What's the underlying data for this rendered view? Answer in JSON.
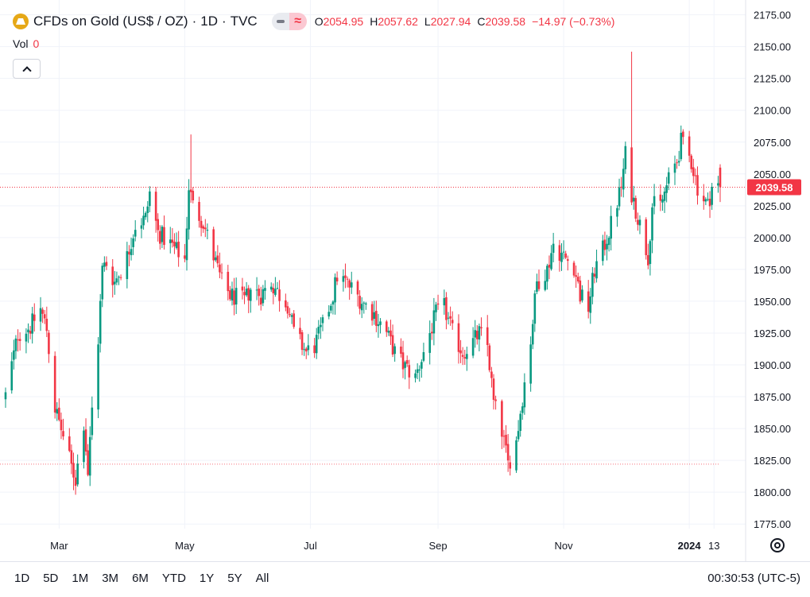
{
  "header": {
    "symbol_title": "CFDs on Gold (US$ / OZ)",
    "interval": "1D",
    "source": "TVC",
    "separator": "·",
    "ohlc": {
      "o_label": "O",
      "o_value": "2054.95",
      "h_label": "H",
      "h_value": "2057.62",
      "l_label": "L",
      "l_value": "2027.94",
      "c_label": "C",
      "c_value": "2039.58",
      "change": "−14.97 (−0.73%)"
    },
    "wave_symbol": "≈"
  },
  "volume": {
    "label": "Vol",
    "value": "0"
  },
  "range_buttons": [
    "1D",
    "5D",
    "1M",
    "3M",
    "6M",
    "YTD",
    "1Y",
    "5Y",
    "All"
  ],
  "clock": "00:30:53 (UTC-5)",
  "colors": {
    "up": "#089981",
    "down": "#f23645",
    "grid": "#f0f3fa",
    "axis_text": "#131722",
    "price_tag": "#f23645",
    "background": "#ffffff"
  },
  "icons": [
    "gold-logo-icon",
    "minus-icon",
    "wave-icon",
    "chevron-up-icon",
    "settings-icon"
  ],
  "chart_data": {
    "type": "candlestick",
    "symbol": "CFDs on Gold (US$ / OZ)",
    "interval": "1D",
    "y_axis": {
      "range": [
        1767,
        2181
      ],
      "ticks": [
        1775,
        1800,
        1825,
        1850,
        1875,
        1900,
        1925,
        1950,
        1975,
        2000,
        2025,
        2050,
        2075,
        2100,
        2125,
        2150,
        2175
      ],
      "tick_labels": [
        "1775.00",
        "1800.00",
        "1825.00",
        "1850.00",
        "1875.00",
        "1900.00",
        "1925.00",
        "1950.00",
        "1975.00",
        "2000.00",
        "2025.00",
        "2050.00",
        "2075.00",
        "2100.00",
        "2125.00",
        "2150.00",
        "2175.00"
      ]
    },
    "x_axis": {
      "range": [
        "2023-02-03",
        "2024-01-16"
      ],
      "labels": [
        {
          "date": "2023-03-01",
          "text": "Mar",
          "bold": false
        },
        {
          "date": "2023-05-01",
          "text": "May",
          "bold": false
        },
        {
          "date": "2023-07-01",
          "text": "Jul",
          "bold": false
        },
        {
          "date": "2023-09-01",
          "text": "Sep",
          "bold": false
        },
        {
          "date": "2023-11-01",
          "text": "Nov",
          "bold": false
        },
        {
          "date": "2024-01-01",
          "text": "2024",
          "bold": true
        },
        {
          "date": "2024-01-13",
          "text": "13",
          "bold": false
        }
      ]
    },
    "grid": true,
    "last_price": 2039.58,
    "last_price_label": "2039.58",
    "low_reference_line": 1822,
    "anchors": [
      [
        "2023-02-03",
        1876
      ],
      [
        "2023-02-09",
        1924
      ],
      [
        "2023-02-15",
        1930
      ],
      [
        "2023-02-20",
        1944
      ],
      [
        "2023-02-23",
        1928
      ],
      [
        "2023-02-27",
        1866
      ],
      [
        "2023-03-03",
        1844
      ],
      [
        "2023-03-07",
        1820
      ],
      [
        "2023-03-09",
        1810
      ],
      [
        "2023-03-13",
        1855
      ],
      [
        "2023-03-15",
        1815
      ],
      [
        "2023-03-17",
        1865
      ],
      [
        "2023-03-20",
        1920
      ],
      [
        "2023-03-22",
        1975
      ],
      [
        "2023-03-24",
        1980
      ],
      [
        "2023-03-28",
        1965
      ],
      [
        "2023-04-03",
        1985
      ],
      [
        "2023-04-07",
        2010
      ],
      [
        "2023-04-12",
        2015
      ],
      [
        "2023-04-14",
        2035
      ],
      [
        "2023-04-18",
        2004
      ],
      [
        "2023-04-24",
        1995
      ],
      [
        "2023-04-28",
        1988
      ],
      [
        "2023-05-01",
        1983
      ],
      [
        "2023-05-03",
        2040
      ],
      [
        "2023-05-05",
        2025
      ],
      [
        "2023-05-10",
        2012
      ],
      [
        "2023-05-15",
        1985
      ],
      [
        "2023-05-19",
        1965
      ],
      [
        "2023-05-23",
        1955
      ],
      [
        "2023-05-30",
        1950
      ],
      [
        "2023-06-02",
        1960
      ],
      [
        "2023-06-07",
        1955
      ],
      [
        "2023-06-12",
        1965
      ],
      [
        "2023-06-16",
        1955
      ],
      [
        "2023-06-20",
        1948
      ],
      [
        "2023-06-23",
        1925
      ],
      [
        "2023-06-29",
        1910
      ],
      [
        "2023-07-03",
        1915
      ],
      [
        "2023-07-07",
        1930
      ],
      [
        "2023-07-12",
        1955
      ],
      [
        "2023-07-14",
        1970
      ],
      [
        "2023-07-18",
        1965
      ],
      [
        "2023-07-21",
        1960
      ],
      [
        "2023-07-26",
        1950
      ],
      [
        "2023-08-01",
        1940
      ],
      [
        "2023-08-07",
        1925
      ],
      [
        "2023-08-11",
        1910
      ],
      [
        "2023-08-15",
        1900
      ],
      [
        "2023-08-21",
        1890
      ],
      [
        "2023-08-24",
        1905
      ],
      [
        "2023-08-28",
        1925
      ],
      [
        "2023-08-31",
        1940
      ],
      [
        "2023-09-04",
        1945
      ],
      [
        "2023-09-08",
        1925
      ],
      [
        "2023-09-13",
        1910
      ],
      [
        "2023-09-18",
        1918
      ],
      [
        "2023-09-21",
        1925
      ],
      [
        "2023-09-25",
        1915
      ],
      [
        "2023-09-28",
        1870
      ],
      [
        "2023-10-02",
        1848
      ],
      [
        "2023-10-05",
        1822
      ],
      [
        "2023-10-09",
        1840
      ],
      [
        "2023-10-12",
        1875
      ],
      [
        "2023-10-16",
        1920
      ],
      [
        "2023-10-19",
        1965
      ],
      [
        "2023-10-24",
        1975
      ],
      [
        "2023-10-27",
        1995
      ],
      [
        "2023-11-01",
        1985
      ],
      [
        "2023-11-06",
        1978
      ],
      [
        "2023-11-09",
        1955
      ],
      [
        "2023-11-13",
        1945
      ],
      [
        "2023-11-16",
        1975
      ],
      [
        "2023-11-20",
        1990
      ],
      [
        "2023-11-24",
        2010
      ],
      [
        "2023-11-29",
        2040
      ],
      [
        "2023-12-01",
        2065
      ],
      [
        "2023-12-04",
        2035
      ],
      [
        "2023-12-08",
        2010
      ],
      [
        "2023-12-12",
        1985
      ],
      [
        "2023-12-14",
        2025
      ],
      [
        "2023-12-18",
        2025
      ],
      [
        "2023-12-22",
        2045
      ],
      [
        "2023-12-26",
        2060
      ],
      [
        "2023-12-28",
        2075
      ],
      [
        "2024-01-02",
        2060
      ],
      [
        "2024-01-05",
        2040
      ],
      [
        "2024-01-08",
        2030
      ],
      [
        "2024-01-10",
        2025
      ],
      [
        "2024-01-12",
        2040
      ],
      [
        "2024-01-16",
        2040
      ]
    ],
    "spikes": [
      {
        "date": "2023-05-04",
        "high": 2081
      },
      {
        "date": "2023-12-04",
        "high": 2146
      },
      {
        "date": "2023-12-28",
        "high": 2088
      }
    ],
    "last_candle": {
      "date": "2024-01-16",
      "open": 2054.95,
      "high": 2057.62,
      "low": 2027.94,
      "close": 2039.58
    }
  }
}
